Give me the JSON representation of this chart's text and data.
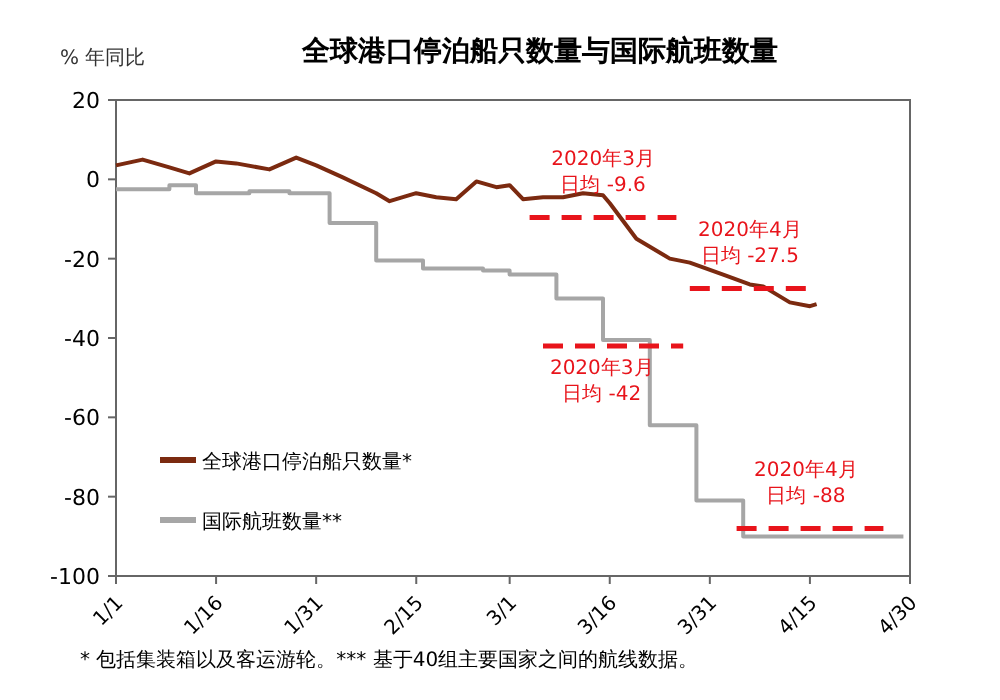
{
  "chart_data": {
    "type": "line",
    "title": "全球港口停泊船只数量与国际航班数量",
    "ylabel": "% 年同比",
    "xlim": [
      "--01-01",
      "--04-30"
    ],
    "ylim": [
      -100,
      20
    ],
    "xticks": [
      {
        "value": "--01-01",
        "label": "1/1"
      },
      {
        "value": "--01-16",
        "label": "1/16"
      },
      {
        "value": "--01-31",
        "label": "1/31"
      },
      {
        "value": "--02-15",
        "label": "2/15"
      },
      {
        "value": "--03-01",
        "label": "3/1"
      },
      {
        "value": "--03-16",
        "label": "3/16"
      },
      {
        "value": "--03-31",
        "label": "3/31"
      },
      {
        "value": "--04-15",
        "label": "4/15"
      },
      {
        "value": "--04-30",
        "label": "4/30"
      }
    ],
    "yticks": [
      20,
      0,
      -20,
      -40,
      -60,
      -80,
      -100
    ],
    "legend": "bottom left",
    "series": [
      {
        "name": "全球港口停泊船只数量*",
        "color": "#7b2a10",
        "x": [
          "--01-01",
          "--01-05",
          "--01-09",
          "--01-12",
          "--01-16",
          "--01-19",
          "--01-24",
          "--01-28",
          "--01-31",
          "--02-04",
          "--02-09",
          "--02-11",
          "--02-15",
          "--02-18",
          "--02-21",
          "--02-24",
          "--02-27",
          "--03-01",
          "--03-03",
          "--03-06",
          "--03-09",
          "--03-12",
          "--03-15",
          "--03-16",
          "--03-20",
          "--03-25",
          "--03-28",
          "--04-02",
          "--04-06",
          "--04-08",
          "--04-12",
          "--04-15",
          "--04-16"
        ],
        "values": [
          3.5,
          5,
          3,
          1.5,
          4.5,
          4,
          2.5,
          5.5,
          3.5,
          0.5,
          -3.5,
          -5.5,
          -3.5,
          -4.5,
          -5,
          -0.5,
          -2,
          -1.5,
          -5,
          -4.5,
          -4.5,
          -3.5,
          -4,
          -6,
          -15,
          -20,
          -21,
          -24,
          -26.5,
          -27,
          -31,
          -32,
          -31.5
        ]
      },
      {
        "name": "国际航班数量**",
        "type": "step",
        "color": "#a6a6a6",
        "x": [
          "--01-01",
          "--01-09",
          "--01-13",
          "--01-21",
          "--01-27",
          "--02-02",
          "--02-09",
          "--02-16",
          "--02-25",
          "--03-01",
          "--03-08",
          "--03-15",
          "--03-22",
          "--03-29",
          "--04-05",
          "--04-29"
        ],
        "values": [
          -2.5,
          -1.5,
          -3.5,
          -3,
          -3.5,
          -11,
          -20.5,
          -22.5,
          -23,
          -24,
          -30,
          -40.5,
          -62,
          -81,
          -90,
          -90
        ]
      },
      {
        "color": "#e8141b",
        "line_style": "dashed",
        "x": [
          "--03-04",
          "--03-26"
        ],
        "values": [
          -9.6,
          -9.6
        ]
      },
      {
        "color": "#e8141b",
        "line_style": "dashed",
        "x": [
          "--03-06",
          "--03-27"
        ],
        "values": [
          -42,
          -42
        ]
      },
      {
        "color": "#e8141b",
        "line_style": "dashed",
        "x": [
          "--03-28",
          "--04-15"
        ],
        "values": [
          -27.5,
          -27.5
        ]
      },
      {
        "color": "#e8141b",
        "line_style": "dashed",
        "x": [
          "--04-04",
          "--04-26"
        ],
        "values": [
          -88,
          -88
        ]
      }
    ],
    "annotations": [
      {
        "text": "2020年3月",
        "x": "--03-15",
        "y": -9.6
      },
      {
        "text": "日均 -9.6",
        "x": "--03-15",
        "y": -9.6
      },
      {
        "text": "2020年3月",
        "x": "--03-16",
        "y": -42
      },
      {
        "text": "日均 -42",
        "x": "--03-16",
        "y": -42
      },
      {
        "text": "2020年4月",
        "x": "--04-06",
        "y": -27.5
      },
      {
        "text": "日均 -27.5",
        "x": "--04-06",
        "y": -27.5
      },
      {
        "text": "2020年4月",
        "x": "--04-15",
        "y": -88
      },
      {
        "text": "日均 -88",
        "x": "--04-15",
        "y": -88
      },
      "* 包括集装箱以及客运游轮。*** 基于40组主要国家之间的航线数据。"
    ]
  }
}
